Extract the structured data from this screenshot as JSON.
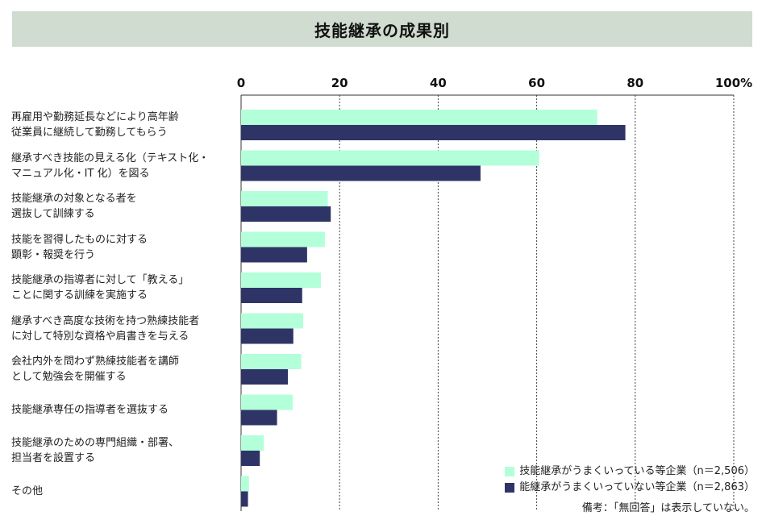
{
  "chart_data": {
    "type": "bar",
    "orientation": "horizontal",
    "title": "技能継承の成果別",
    "xlim": [
      0,
      100
    ],
    "ticks": [
      "0",
      "20",
      "40",
      "60",
      "80",
      "100%"
    ],
    "tick_values": [
      0,
      20,
      40,
      60,
      80,
      100
    ],
    "categories": [
      "再雇用や勤務延長などにより高年齢\n従業員に継続して勤務してもらう",
      "継承すべき技能の見える化（テキスト化・\nマニュアル化・IT 化）を図る",
      "技能継承の対象となる者を\n選抜して訓練する",
      "技能を習得したものに対する\n顕彰・報奨を行う",
      "技能継承の指導者に対して「教える」\nことに関する訓練を実施する",
      "継承すべき高度な技術を持つ熟練技能者\nに対して特別な資格や肩書きを与える",
      "会社内外を問わず熟練技能者を講師\nとして勉強会を開催する",
      "技能継承専任の指導者を選抜する",
      "技能継承のための専門組織・部署、\n担当者を設置する",
      "その他"
    ],
    "series": [
      {
        "name": "技能継承がうまくいっている等企業（n＝2,506）",
        "color": "#b3ffd9",
        "values": [
          72.3,
          60.5,
          17.6,
          17.0,
          16.2,
          12.6,
          12.2,
          10.5,
          4.6,
          1.6
        ]
      },
      {
        "name": "能継承がうまくいっていない等企業（n＝2,863）",
        "color": "#2e3566",
        "values": [
          78.0,
          48.6,
          18.2,
          13.4,
          12.4,
          10.6,
          9.5,
          7.3,
          3.8,
          1.4
        ]
      }
    ],
    "grid": "vertical-dashed",
    "legend_position": "bottom-right"
  },
  "note": "備考：「無回答」は表示していない。"
}
